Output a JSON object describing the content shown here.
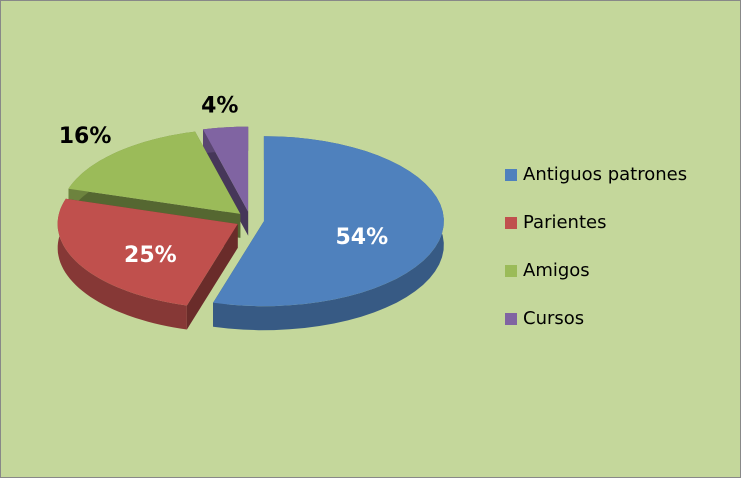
{
  "chart_data": {
    "type": "pie",
    "categories": [
      "Antiguos patrones",
      "Parientes",
      "Amigos",
      "Cursos"
    ],
    "values": [
      54,
      25,
      16,
      4
    ],
    "value_labels": [
      "54%",
      "25%",
      "16%",
      "4%"
    ],
    "colors": [
      "#4f81bd",
      "#c0504d",
      "#9bbb59",
      "#8064a2"
    ],
    "legend": "right"
  }
}
